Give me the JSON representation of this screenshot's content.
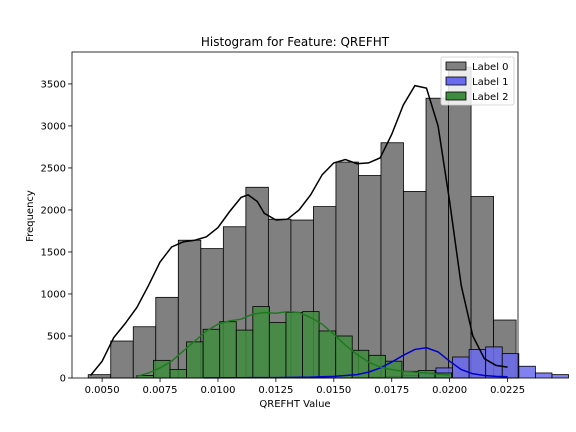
{
  "chart_data": {
    "type": "histogram",
    "title": "Histogram for Feature: QREFHT",
    "xlabel": "QREFHT Value",
    "ylabel": "Frequency",
    "xlim": [
      0.0037,
      0.02295
    ],
    "ylim": [
      0,
      3880
    ],
    "x_ticks": [
      0.005,
      0.0075,
      0.01,
      0.0125,
      0.015,
      0.0175,
      0.02,
      0.0225
    ],
    "x_tick_labels": [
      "0.0050",
      "0.0075",
      "0.0100",
      "0.0125",
      "0.0150",
      "0.0175",
      "0.0200",
      "0.0225"
    ],
    "y_ticks": [
      0,
      500,
      1000,
      1500,
      2000,
      2500,
      3000,
      3500
    ],
    "y_tick_labels": [
      "0",
      "500",
      "1000",
      "1500",
      "2000",
      "2500",
      "3000",
      "3500"
    ],
    "legend_position": "top-right",
    "series": [
      {
        "name": "Label 0",
        "color": "#808080",
        "edge": "#000000",
        "kde_color": "#000000",
        "bin_start": 0.0044,
        "bin_width": 0.000972,
        "counts": [
          40,
          440,
          610,
          960,
          1640,
          1540,
          1800,
          2270,
          1890,
          1880,
          2040,
          2570,
          2410,
          2800,
          2220,
          3330,
          3700,
          2160,
          690
        ],
        "kde": [
          [
            0.0045,
            30
          ],
          [
            0.005,
            200
          ],
          [
            0.0055,
            480
          ],
          [
            0.006,
            650
          ],
          [
            0.0065,
            840
          ],
          [
            0.007,
            1100
          ],
          [
            0.0075,
            1380
          ],
          [
            0.008,
            1560
          ],
          [
            0.0085,
            1620
          ],
          [
            0.009,
            1640
          ],
          [
            0.0095,
            1680
          ],
          [
            0.01,
            1790
          ],
          [
            0.0105,
            1980
          ],
          [
            0.011,
            2150
          ],
          [
            0.0113,
            2180
          ],
          [
            0.0117,
            2100
          ],
          [
            0.012,
            1960
          ],
          [
            0.0125,
            1880
          ],
          [
            0.013,
            1890
          ],
          [
            0.0135,
            2000
          ],
          [
            0.014,
            2180
          ],
          [
            0.0145,
            2420
          ],
          [
            0.015,
            2560
          ],
          [
            0.0155,
            2600
          ],
          [
            0.016,
            2550
          ],
          [
            0.0165,
            2560
          ],
          [
            0.017,
            2620
          ],
          [
            0.0175,
            2900
          ],
          [
            0.018,
            3250
          ],
          [
            0.0185,
            3480
          ],
          [
            0.019,
            3450
          ],
          [
            0.0195,
            3000
          ],
          [
            0.02,
            2100
          ],
          [
            0.0205,
            1100
          ],
          [
            0.021,
            500
          ],
          [
            0.0215,
            230
          ],
          [
            0.022,
            150
          ],
          [
            0.0225,
            130
          ]
        ]
      },
      {
        "name": "Label 1",
        "color": "#6b6bf0",
        "edge": "#000000",
        "kde_color": "#0000cc",
        "bin_start": 0.0094,
        "bin_width": 0.000715,
        "counts": [
          0,
          0,
          0,
          0,
          0,
          0,
          0,
          0,
          0,
          0,
          10,
          20,
          30,
          60,
          120,
          250,
          340,
          370,
          290,
          140,
          60,
          40
        ],
        "kde": [
          [
            0.0094,
            2
          ],
          [
            0.011,
            3
          ],
          [
            0.0125,
            5
          ],
          [
            0.014,
            10
          ],
          [
            0.015,
            20
          ],
          [
            0.016,
            40
          ],
          [
            0.0165,
            70
          ],
          [
            0.017,
            120
          ],
          [
            0.0175,
            190
          ],
          [
            0.018,
            270
          ],
          [
            0.0185,
            340
          ],
          [
            0.019,
            360
          ],
          [
            0.0195,
            310
          ],
          [
            0.02,
            200
          ],
          [
            0.0205,
            100
          ],
          [
            0.021,
            50
          ],
          [
            0.0215,
            30
          ],
          [
            0.022,
            20
          ],
          [
            0.0225,
            15
          ]
        ]
      },
      {
        "name": "Label 2",
        "color": "#3f8c3f",
        "edge": "#000000",
        "kde_color": "#1f7a1f",
        "bin_start": 0.0065,
        "bin_width": 0.000715,
        "counts": [
          30,
          210,
          100,
          430,
          580,
          670,
          570,
          850,
          660,
          780,
          790,
          560,
          500,
          330,
          270,
          200,
          80,
          90,
          60
        ],
        "kde": [
          [
            0.0065,
            20
          ],
          [
            0.007,
            60
          ],
          [
            0.0075,
            120
          ],
          [
            0.008,
            200
          ],
          [
            0.0085,
            320
          ],
          [
            0.009,
            440
          ],
          [
            0.0095,
            560
          ],
          [
            0.01,
            640
          ],
          [
            0.0105,
            680
          ],
          [
            0.011,
            700
          ],
          [
            0.0115,
            760
          ],
          [
            0.012,
            780
          ],
          [
            0.0125,
            770
          ],
          [
            0.013,
            790
          ],
          [
            0.0135,
            780
          ],
          [
            0.014,
            720
          ],
          [
            0.0145,
            640
          ],
          [
            0.015,
            520
          ],
          [
            0.0155,
            390
          ],
          [
            0.016,
            280
          ],
          [
            0.0165,
            190
          ],
          [
            0.017,
            130
          ],
          [
            0.0175,
            100
          ],
          [
            0.018,
            80
          ],
          [
            0.0185,
            70
          ],
          [
            0.019,
            60
          ],
          [
            0.0195,
            45
          ],
          [
            0.02,
            35
          ]
        ]
      }
    ]
  }
}
